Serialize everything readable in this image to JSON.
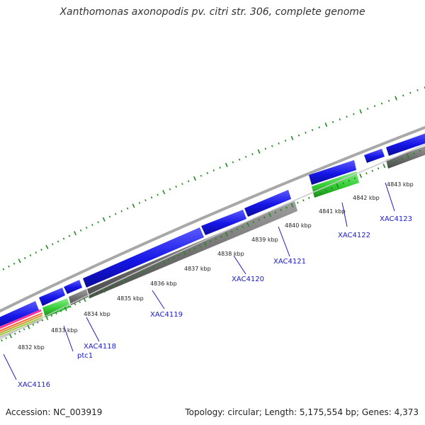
{
  "title": "Xanthomonas axonopodis pv. citri str. 306, complete genome",
  "footer": {
    "accession": "Accession: NC_003919",
    "summary": "Topology: circular; Length: 5,175,554 bp; Genes: 4,373"
  },
  "colors": {
    "cds": "#1515e6",
    "gene": "#7a7a7a",
    "rna": "#33cc33",
    "backbone": "#a8a8a8",
    "ticks": "#1f8a1f",
    "label_line": "#1a1acc"
  },
  "kbp_labels": [
    "4832 kbp",
    "4833 kbp",
    "4834 kbp",
    "4835 kbp",
    "4836 kbp",
    "4837 kbp",
    "4838 kbp",
    "4839 kbp",
    "4840 kbp",
    "4841 kbp",
    "4842 kbp",
    "4843 kbp"
  ],
  "gene_labels": [
    "XAC4116",
    "ptc1",
    "XAC4118",
    "XAC4119",
    "XAC4120",
    "XAC4121",
    "XAC4122",
    "XAC4123"
  ],
  "feature_tracks": [
    "CDS",
    "gene",
    "RNA"
  ]
}
